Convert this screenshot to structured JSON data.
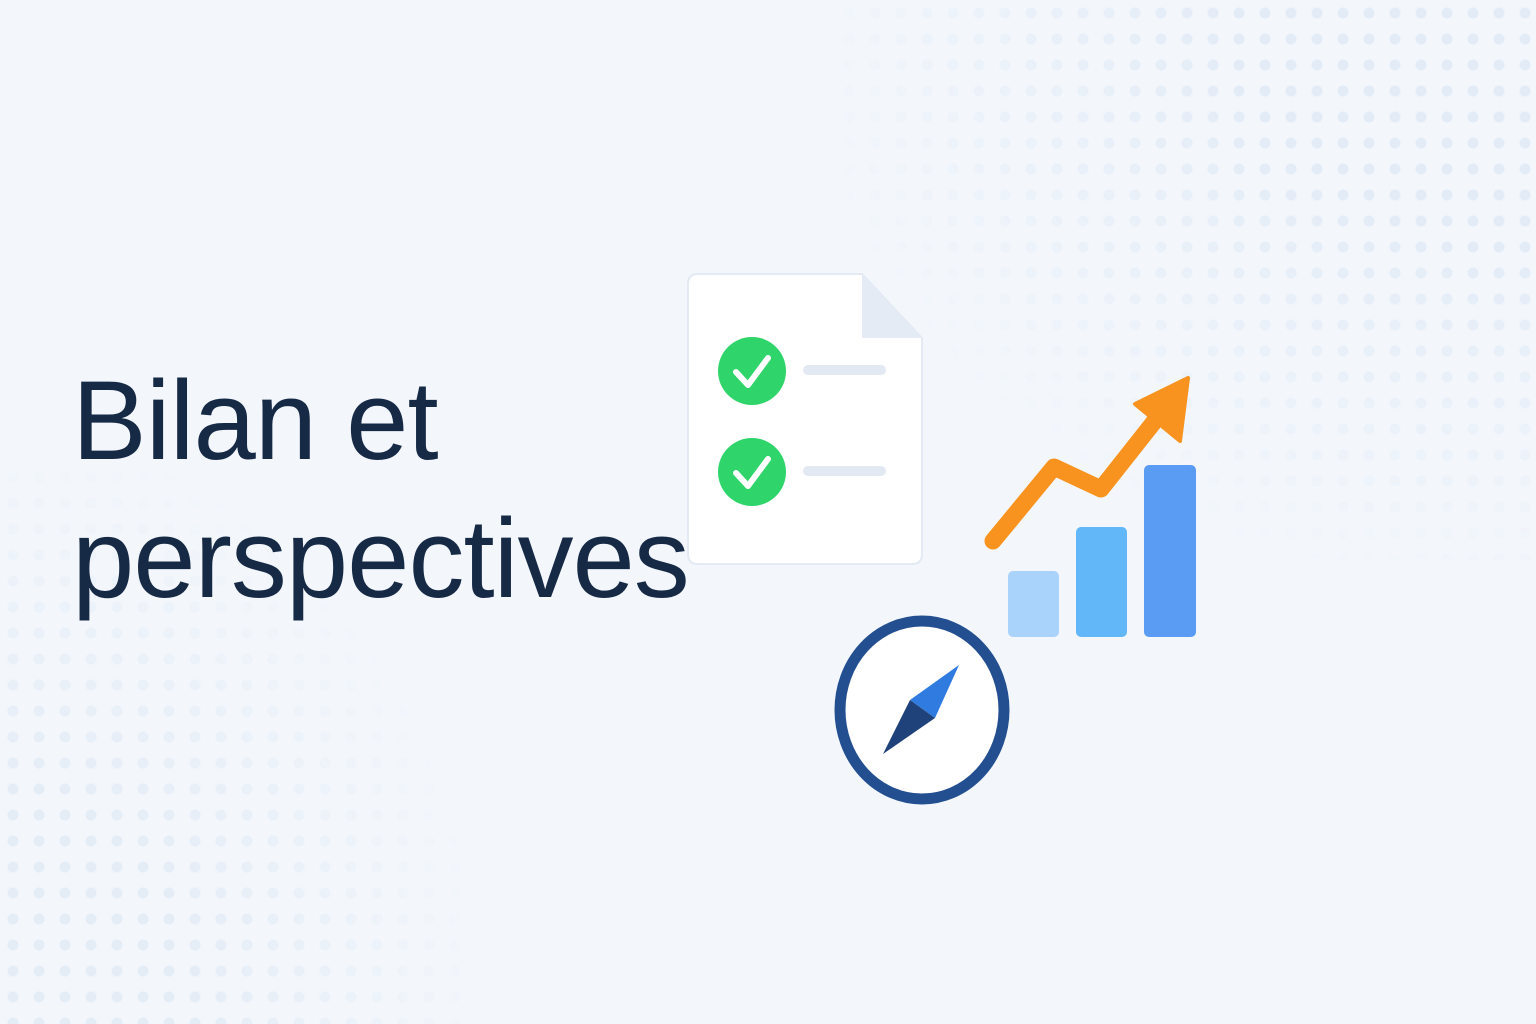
{
  "title": {
    "line1": "Bilan et",
    "line2": "perspectives"
  },
  "icons": {
    "checklist": "checklist-document-icon",
    "growth": "growth-chart-icon",
    "compass": "compass-icon"
  },
  "colors": {
    "background": "#f3f7fc",
    "title": "#172a45",
    "check_green": "#2fd46a",
    "arrow_orange": "#f7931e",
    "bar_light": "#a9d3fb",
    "bar_mid": "#62b7f9",
    "bar_dark": "#5a9cf3",
    "compass_ring": "#234f91",
    "compass_needle": "#2f7be0"
  }
}
